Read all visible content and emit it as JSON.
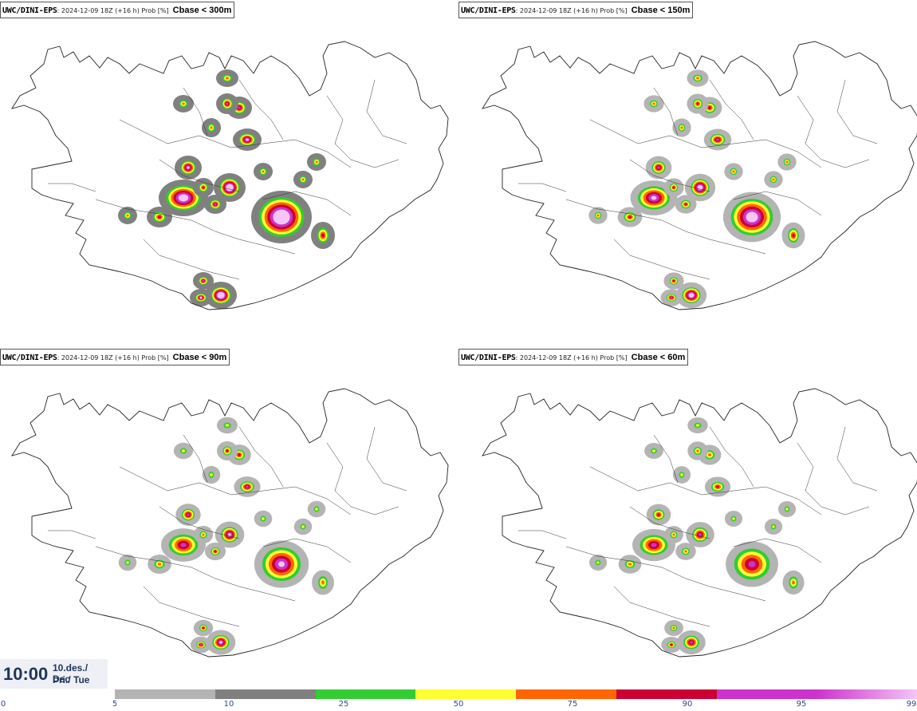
{
  "panels": [
    {
      "model": "UWC/DINI-EPS",
      "meta": ": 2024-12-09 18Z (+16 h) Prob [%]",
      "threshold": "Cbase < 300m",
      "level": 1.0
    },
    {
      "model": "UWC/DINI-EPS",
      "meta": ": 2024-12-09 18Z (+16 h) Prob [%]",
      "threshold": "Cbase < 150m",
      "level": 0.85
    },
    {
      "model": "UWC/DINI-EPS",
      "meta": ": 2024-12-09 18Z (+16 h) Prob [%]",
      "threshold": "Cbase < 90m",
      "level": 0.7
    },
    {
      "model": "UWC/DINI-EPS",
      "meta": ": 2024-12-09 18Z (+16 h) Prob [%]",
      "threshold": "Cbase < 60m",
      "level": 0.6
    }
  ],
  "valid_time": {
    "time": "10:00",
    "date": "10.des./ Dec",
    "day": "Þri./ Tue"
  },
  "legend": {
    "ticks": [
      "0",
      "5",
      "10",
      "25",
      "50",
      "75",
      "90",
      "95",
      "99"
    ],
    "colors": [
      "#b4b4b4",
      "#808080",
      "#33cc33",
      "#ffff33",
      "#ff6600",
      "#cc0033",
      "#cc33cc",
      "#f5c6f5"
    ]
  }
}
